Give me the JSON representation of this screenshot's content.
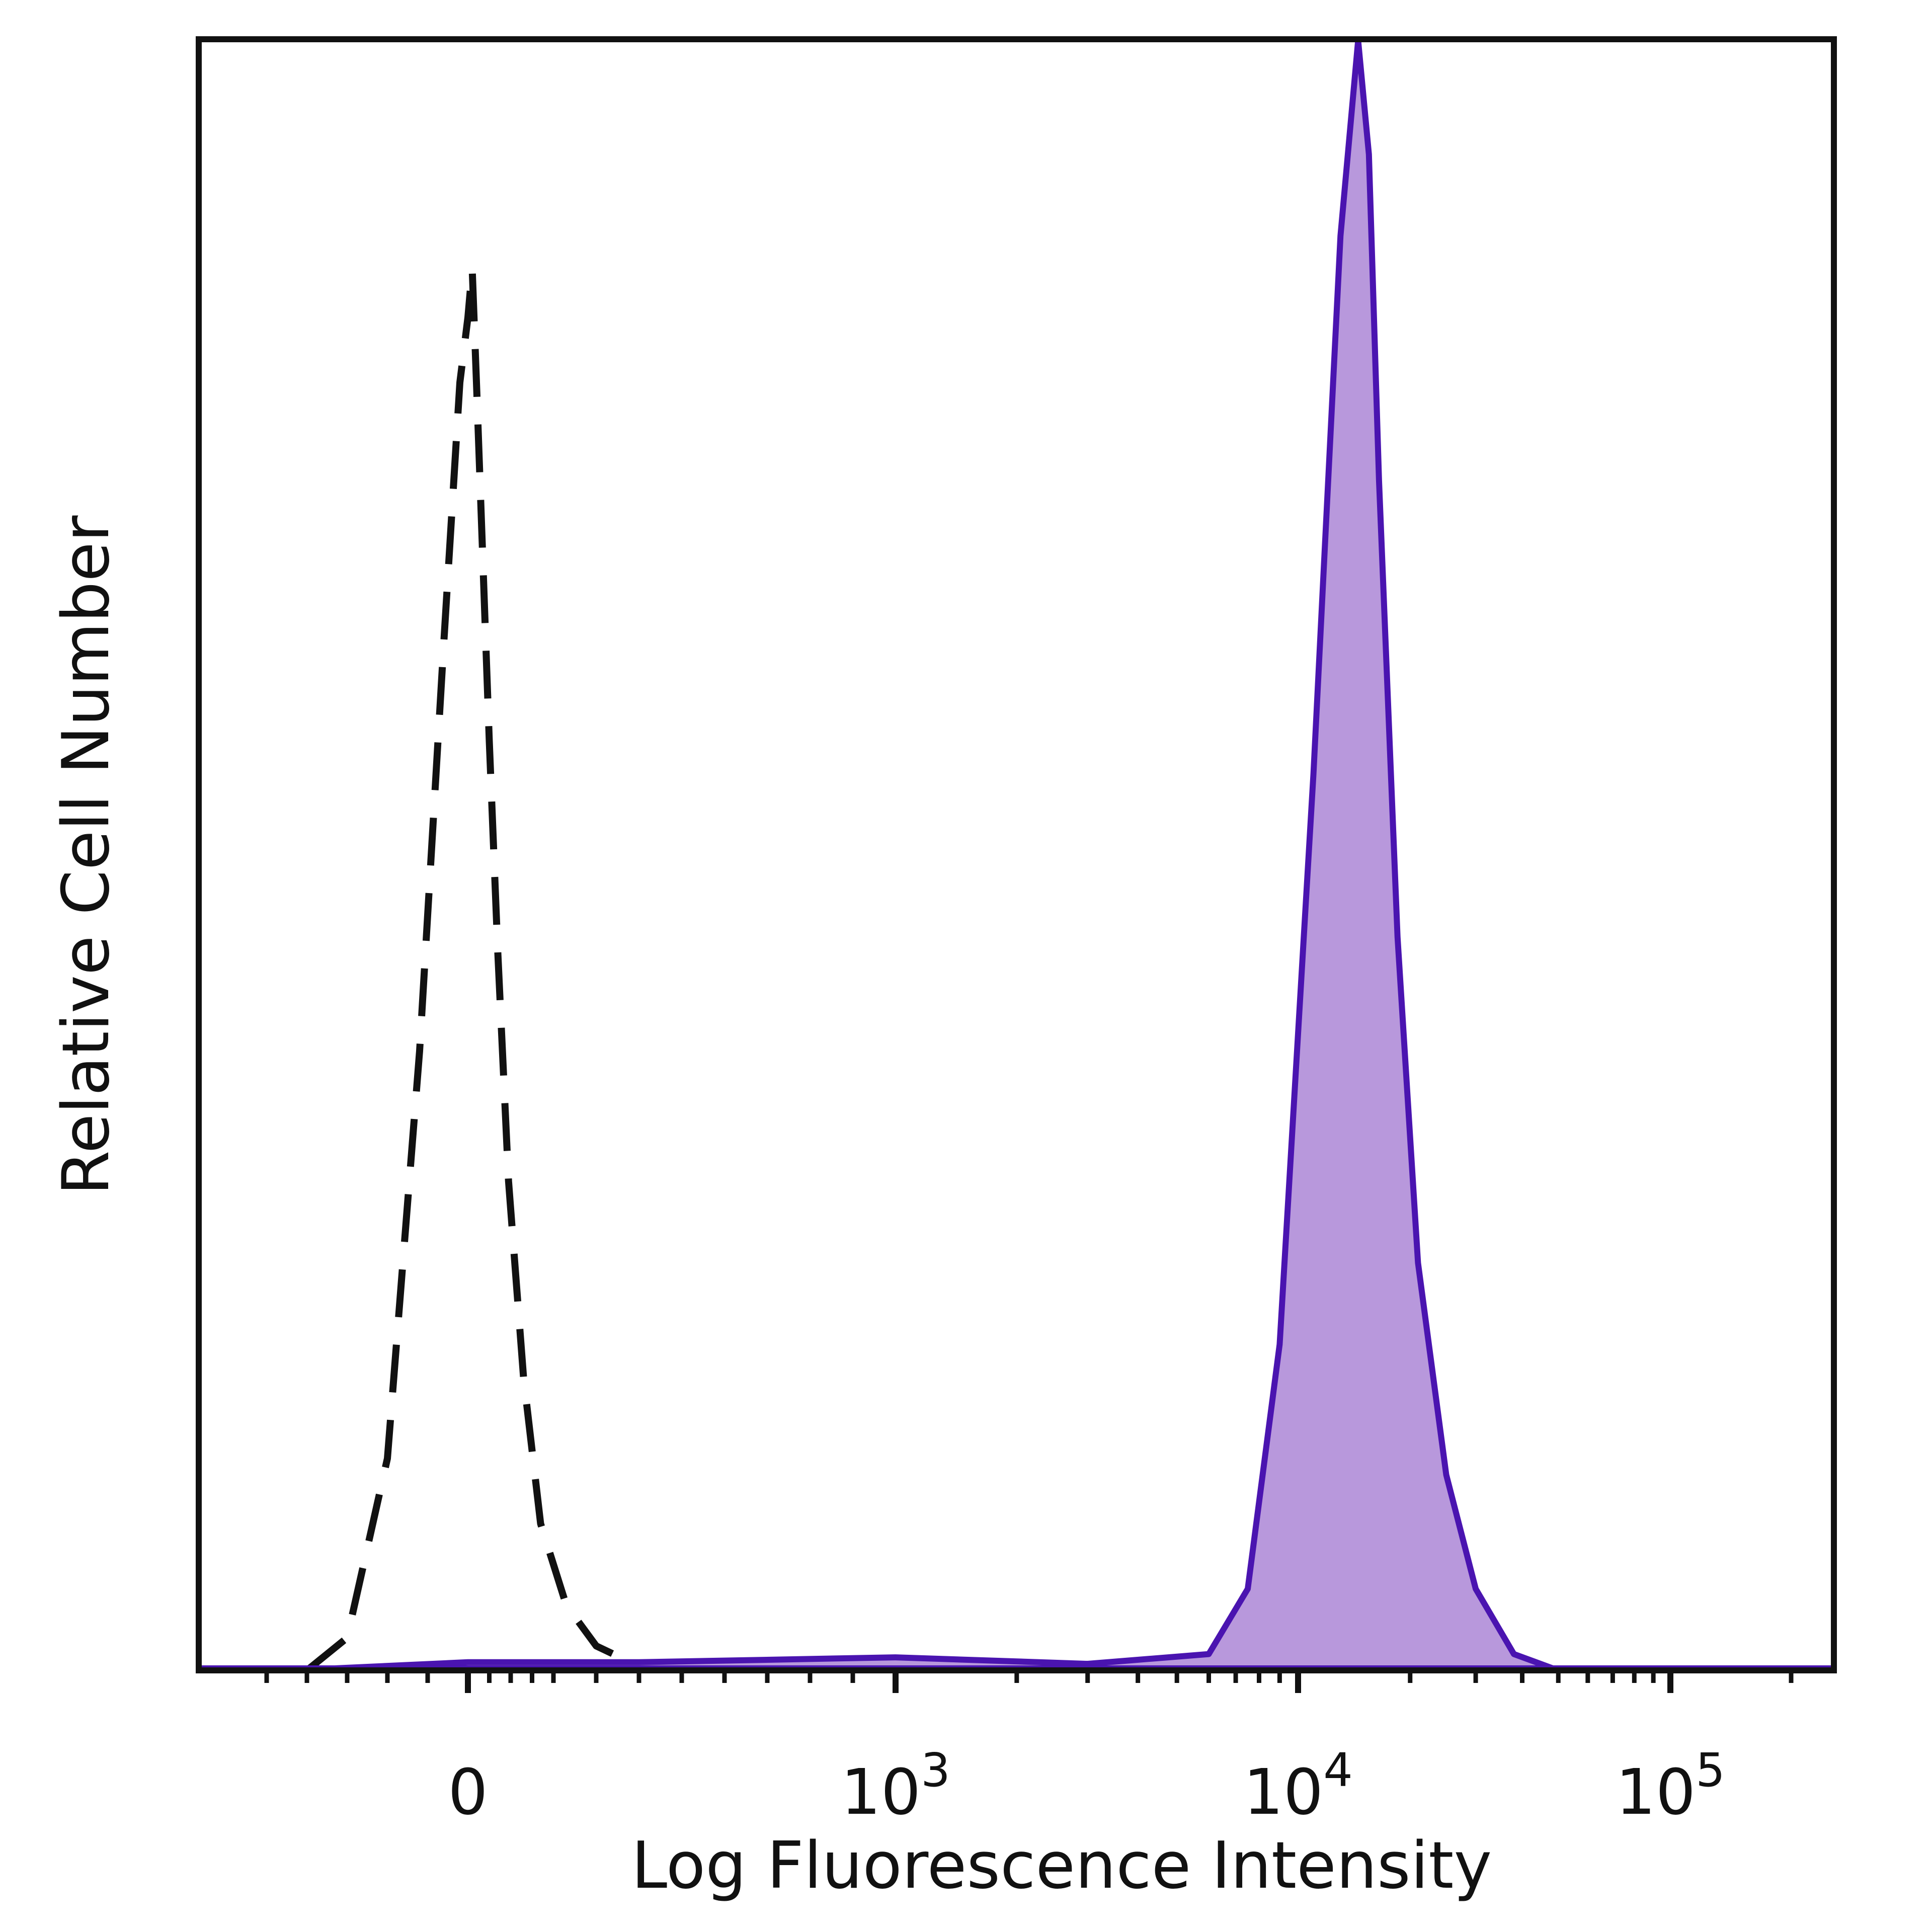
{
  "chart_data": {
    "type": "area",
    "xlabel": "Log Fluorescence Intensity",
    "ylabel": "Relative Cell Number",
    "x_scale": "biexponential",
    "x_ticks": [
      {
        "value": 0,
        "base": "0",
        "exp": ""
      },
      {
        "value": 1000,
        "base": "10",
        "exp": "3"
      },
      {
        "value": 10000,
        "base": "10",
        "exp": "4"
      },
      {
        "value": 100000,
        "base": "10",
        "exp": "5"
      }
    ],
    "ylim": [
      0,
      1
    ],
    "grid": false,
    "legend": "none",
    "series": [
      {
        "style": "dashed",
        "color": "#111111",
        "fill": "none",
        "x": [
          -200,
          -150,
          -100,
          -60,
          -30,
          -10,
          0,
          10,
          20,
          35,
          50,
          70,
          95,
          130,
          170,
          230,
          300,
          380
        ],
        "y": [
          0.0,
          0.02,
          0.13,
          0.38,
          0.63,
          0.79,
          0.83,
          0.86,
          0.79,
          0.68,
          0.57,
          0.44,
          0.3,
          0.18,
          0.09,
          0.04,
          0.015,
          0.005
        ]
      },
      {
        "style": "solid",
        "color": "#4a14b0",
        "fill": "#b898dc",
        "x": [
          -220,
          0,
          400,
          1000,
          3000,
          6000,
          7500,
          9000,
          11000,
          13000,
          14500,
          15500,
          16500,
          18500,
          21000,
          25000,
          30000,
          38000,
          50000
        ],
        "y": [
          0.0,
          0.005,
          0.005,
          0.008,
          0.004,
          0.01,
          0.05,
          0.2,
          0.55,
          0.88,
          1.0,
          0.93,
          0.73,
          0.45,
          0.25,
          0.12,
          0.05,
          0.01,
          0.0
        ]
      }
    ]
  }
}
